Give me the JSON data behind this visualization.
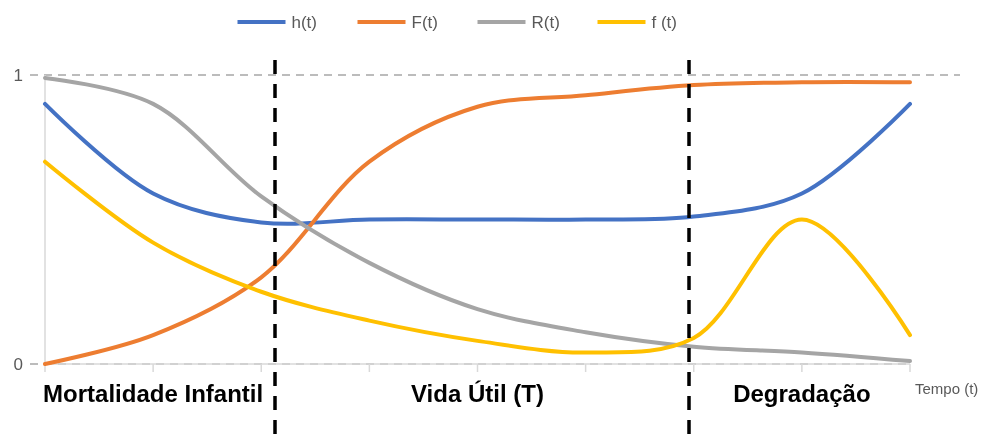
{
  "chart_data": {
    "type": "line",
    "xlabel": "Tempo (t)",
    "categories": [
      null,
      "Mortalidade Infantil",
      null,
      null,
      "Vida Útil (T)",
      null,
      null,
      "Degradação",
      null
    ],
    "ylim": [
      0,
      1
    ],
    "yticks": [
      0,
      1
    ],
    "grid": "y",
    "legend": "top",
    "marker": "none",
    "line_style": "solid",
    "series": [
      {
        "name": "h(t)",
        "color": "#4472c4",
        "values": [
          0.9,
          0.59,
          0.49,
          0.5,
          0.5,
          0.5,
          0.51,
          0.59,
          0.9
        ]
      },
      {
        "name": "F(t)",
        "color": "#ed7d31",
        "values": [
          0,
          0.1,
          0.3,
          0.7,
          0.89,
          0.93,
          0.965,
          0.975,
          0.975
        ]
      },
      {
        "name": "R(t)",
        "color": "#a5a5a5",
        "values": [
          0.99,
          0.9,
          0.58,
          0.35,
          0.19,
          0.11,
          0.06,
          0.04,
          0.01
        ]
      },
      {
        "name": "f (t)",
        "color": "#ffc000",
        "values": [
          0.7,
          0.42,
          0.25,
          0.15,
          0.08,
          0.04,
          0.09,
          0.5,
          0.1
        ]
      }
    ]
  }
}
